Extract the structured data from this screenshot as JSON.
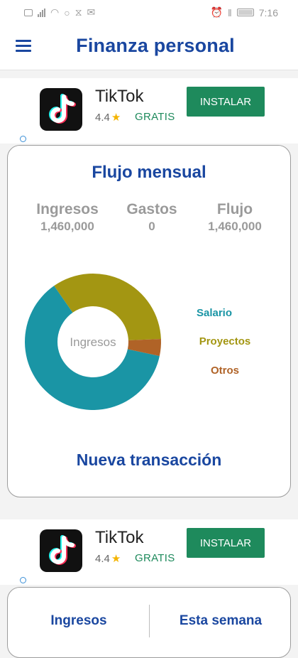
{
  "status_bar": {
    "time": "7:16",
    "icons": [
      "notification-icon",
      "signal-icon",
      "wifi-icon",
      "whatsapp-icon",
      "cast-icon",
      "mail-icon",
      "alarm-icon",
      "vibrate-icon",
      "battery-icon"
    ]
  },
  "app_bar": {
    "title": "Finanza personal",
    "menu_icon": "hamburger-menu-icon"
  },
  "ads": [
    {
      "app_name": "TikTok",
      "rating": "4.4",
      "price": "GRATIS",
      "button": "INSTALAR"
    },
    {
      "app_name": "TikTok",
      "rating": "4.4",
      "price": "GRATIS",
      "button": "INSTALAR"
    }
  ],
  "flow_card": {
    "title": "Flujo mensual",
    "stats": [
      {
        "label": "Ingresos",
        "value": "1,460,000"
      },
      {
        "label": "Gastos",
        "value": "0"
      },
      {
        "label": "Flujo",
        "value": "1,460,000"
      }
    ],
    "new_transaction": "Nueva transacción"
  },
  "chart_data": {
    "type": "pie",
    "style": "donut",
    "center_label": "Ingresos",
    "categories": [
      "Salario",
      "Proyectos",
      "Otros"
    ],
    "values": [
      62,
      34,
      4
    ],
    "colors": [
      "#1a95a5",
      "#a39612",
      "#b06327"
    ],
    "legend_position": "right"
  },
  "summary_card": {
    "tabs": [
      "Ingresos",
      "Esta semana"
    ]
  }
}
